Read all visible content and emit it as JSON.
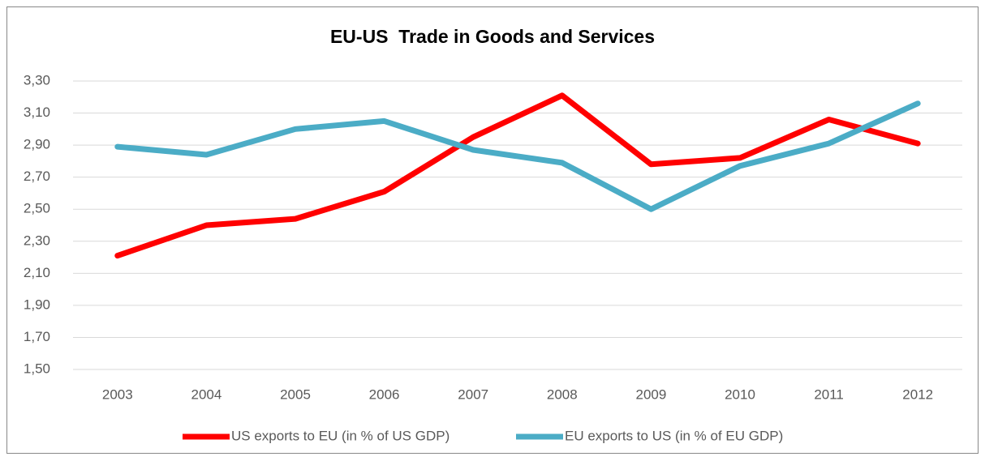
{
  "chart_data": {
    "type": "line",
    "title": "EU-US  Trade in Goods and Services",
    "categories": [
      "2003",
      "2004",
      "2005",
      "2006",
      "2007",
      "2008",
      "2009",
      "2010",
      "2011",
      "2012"
    ],
    "series": [
      {
        "name": "US exports to EU (in % of US GDP)",
        "color": "#ff0000",
        "values": [
          2.21,
          2.4,
          2.44,
          2.61,
          2.95,
          3.21,
          2.78,
          2.82,
          3.06,
          2.91
        ]
      },
      {
        "name": "EU exports to US (in % of EU GDP)",
        "color": "#4bacc6",
        "values": [
          2.89,
          2.84,
          3.0,
          3.05,
          2.87,
          2.79,
          2.5,
          2.77,
          2.91,
          3.16
        ]
      }
    ],
    "ylim": [
      1.5,
      3.3
    ],
    "yticks": [
      {
        "value": 1.5,
        "label": "1,50"
      },
      {
        "value": 1.7,
        "label": "1,70"
      },
      {
        "value": 1.9,
        "label": "1,90"
      },
      {
        "value": 2.1,
        "label": "2,10"
      },
      {
        "value": 2.3,
        "label": "2,30"
      },
      {
        "value": 2.5,
        "label": "2,50"
      },
      {
        "value": 2.7,
        "label": "2,70"
      },
      {
        "value": 2.9,
        "label": "2,90"
      },
      {
        "value": 3.1,
        "label": "3,10"
      },
      {
        "value": 3.3,
        "label": "3,30"
      }
    ],
    "grid": true,
    "legend": "bottom"
  }
}
